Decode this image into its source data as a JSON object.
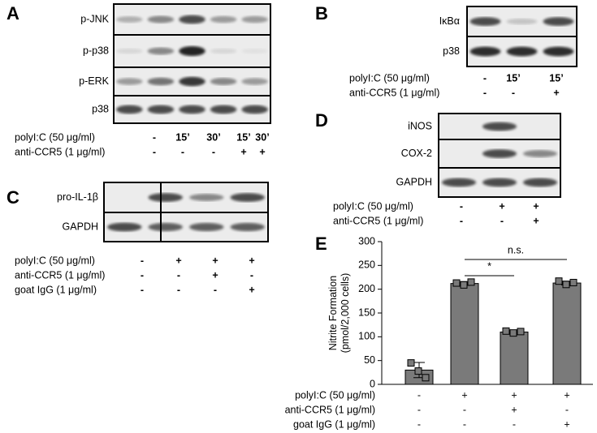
{
  "panels": [
    {
      "letter": "A",
      "rows": [
        "p-JNK",
        "p-p38",
        "p-ERK",
        "p38"
      ],
      "conditions": [
        {
          "label": "polyI:C (50 μg/ml)",
          "values": [
            "-",
            "15’",
            "30’",
            "15’",
            "30’"
          ]
        },
        {
          "label": "anti-CCR5 (1 μg/ml)",
          "values": [
            "-",
            "-",
            "-",
            "+",
            "+"
          ]
        }
      ]
    },
    {
      "letter": "B",
      "rows": [
        "IκBα",
        "p38"
      ],
      "conditions": [
        {
          "label": "polyI:C (50 μg/ml)",
          "values": [
            "-",
            "15’",
            "15’"
          ]
        },
        {
          "label": "anti-CCR5 (1 μg/ml)",
          "values": [
            "-",
            "-",
            "+"
          ]
        }
      ]
    },
    {
      "letter": "C",
      "rows": [
        "pro-IL-1β",
        "GAPDH"
      ],
      "conditions": [
        {
          "label": "polyI:C (50 μg/ml)",
          "values": [
            "-",
            "+",
            "+",
            "+"
          ]
        },
        {
          "label": "anti-CCR5 (1 μg/ml)",
          "values": [
            "-",
            "-",
            "+",
            "-"
          ]
        },
        {
          "label": "goat IgG (1 μg/ml)",
          "values": [
            "-",
            "-",
            "-",
            "+"
          ]
        }
      ]
    },
    {
      "letter": "D",
      "rows": [
        "iNOS",
        "COX-2",
        "GAPDH"
      ],
      "conditions": [
        {
          "label": "polyI:C (50 μg/ml)",
          "values": [
            "-",
            "+",
            "+"
          ]
        },
        {
          "label": "anti-CCR5 (1 μg/ml)",
          "values": [
            "-",
            "-",
            "+"
          ]
        }
      ]
    }
  ],
  "chart_data": {
    "type": "bar",
    "panel_label": "E",
    "y_label": "Nitrite Formation\n(pmol/2,000 cells)",
    "values": [
      30,
      212,
      110,
      213
    ],
    "errors": [
      16,
      4,
      3,
      4
    ],
    "points": [
      [
        45,
        28,
        14
      ],
      [
        213,
        209,
        215
      ],
      [
        112,
        108,
        111
      ],
      [
        217,
        210,
        214
      ]
    ],
    "color": "#7a7a7a",
    "ylim": [
      0,
      300
    ],
    "yticks": [
      0,
      50,
      100,
      150,
      200,
      250,
      300
    ],
    "annotations": [
      "*",
      "n.s."
    ],
    "conditions": [
      {
        "label": "polyI:C (50 μg/ml)",
        "values": [
          "-",
          "+",
          "+",
          "+"
        ]
      },
      {
        "label": "anti-CCR5 (1 μg/ml)",
        "values": [
          "-",
          "-",
          "+",
          "-"
        ]
      },
      {
        "label": "goat IgG (1 μg/ml)",
        "values": [
          "-",
          "-",
          "-",
          "+"
        ]
      }
    ]
  }
}
